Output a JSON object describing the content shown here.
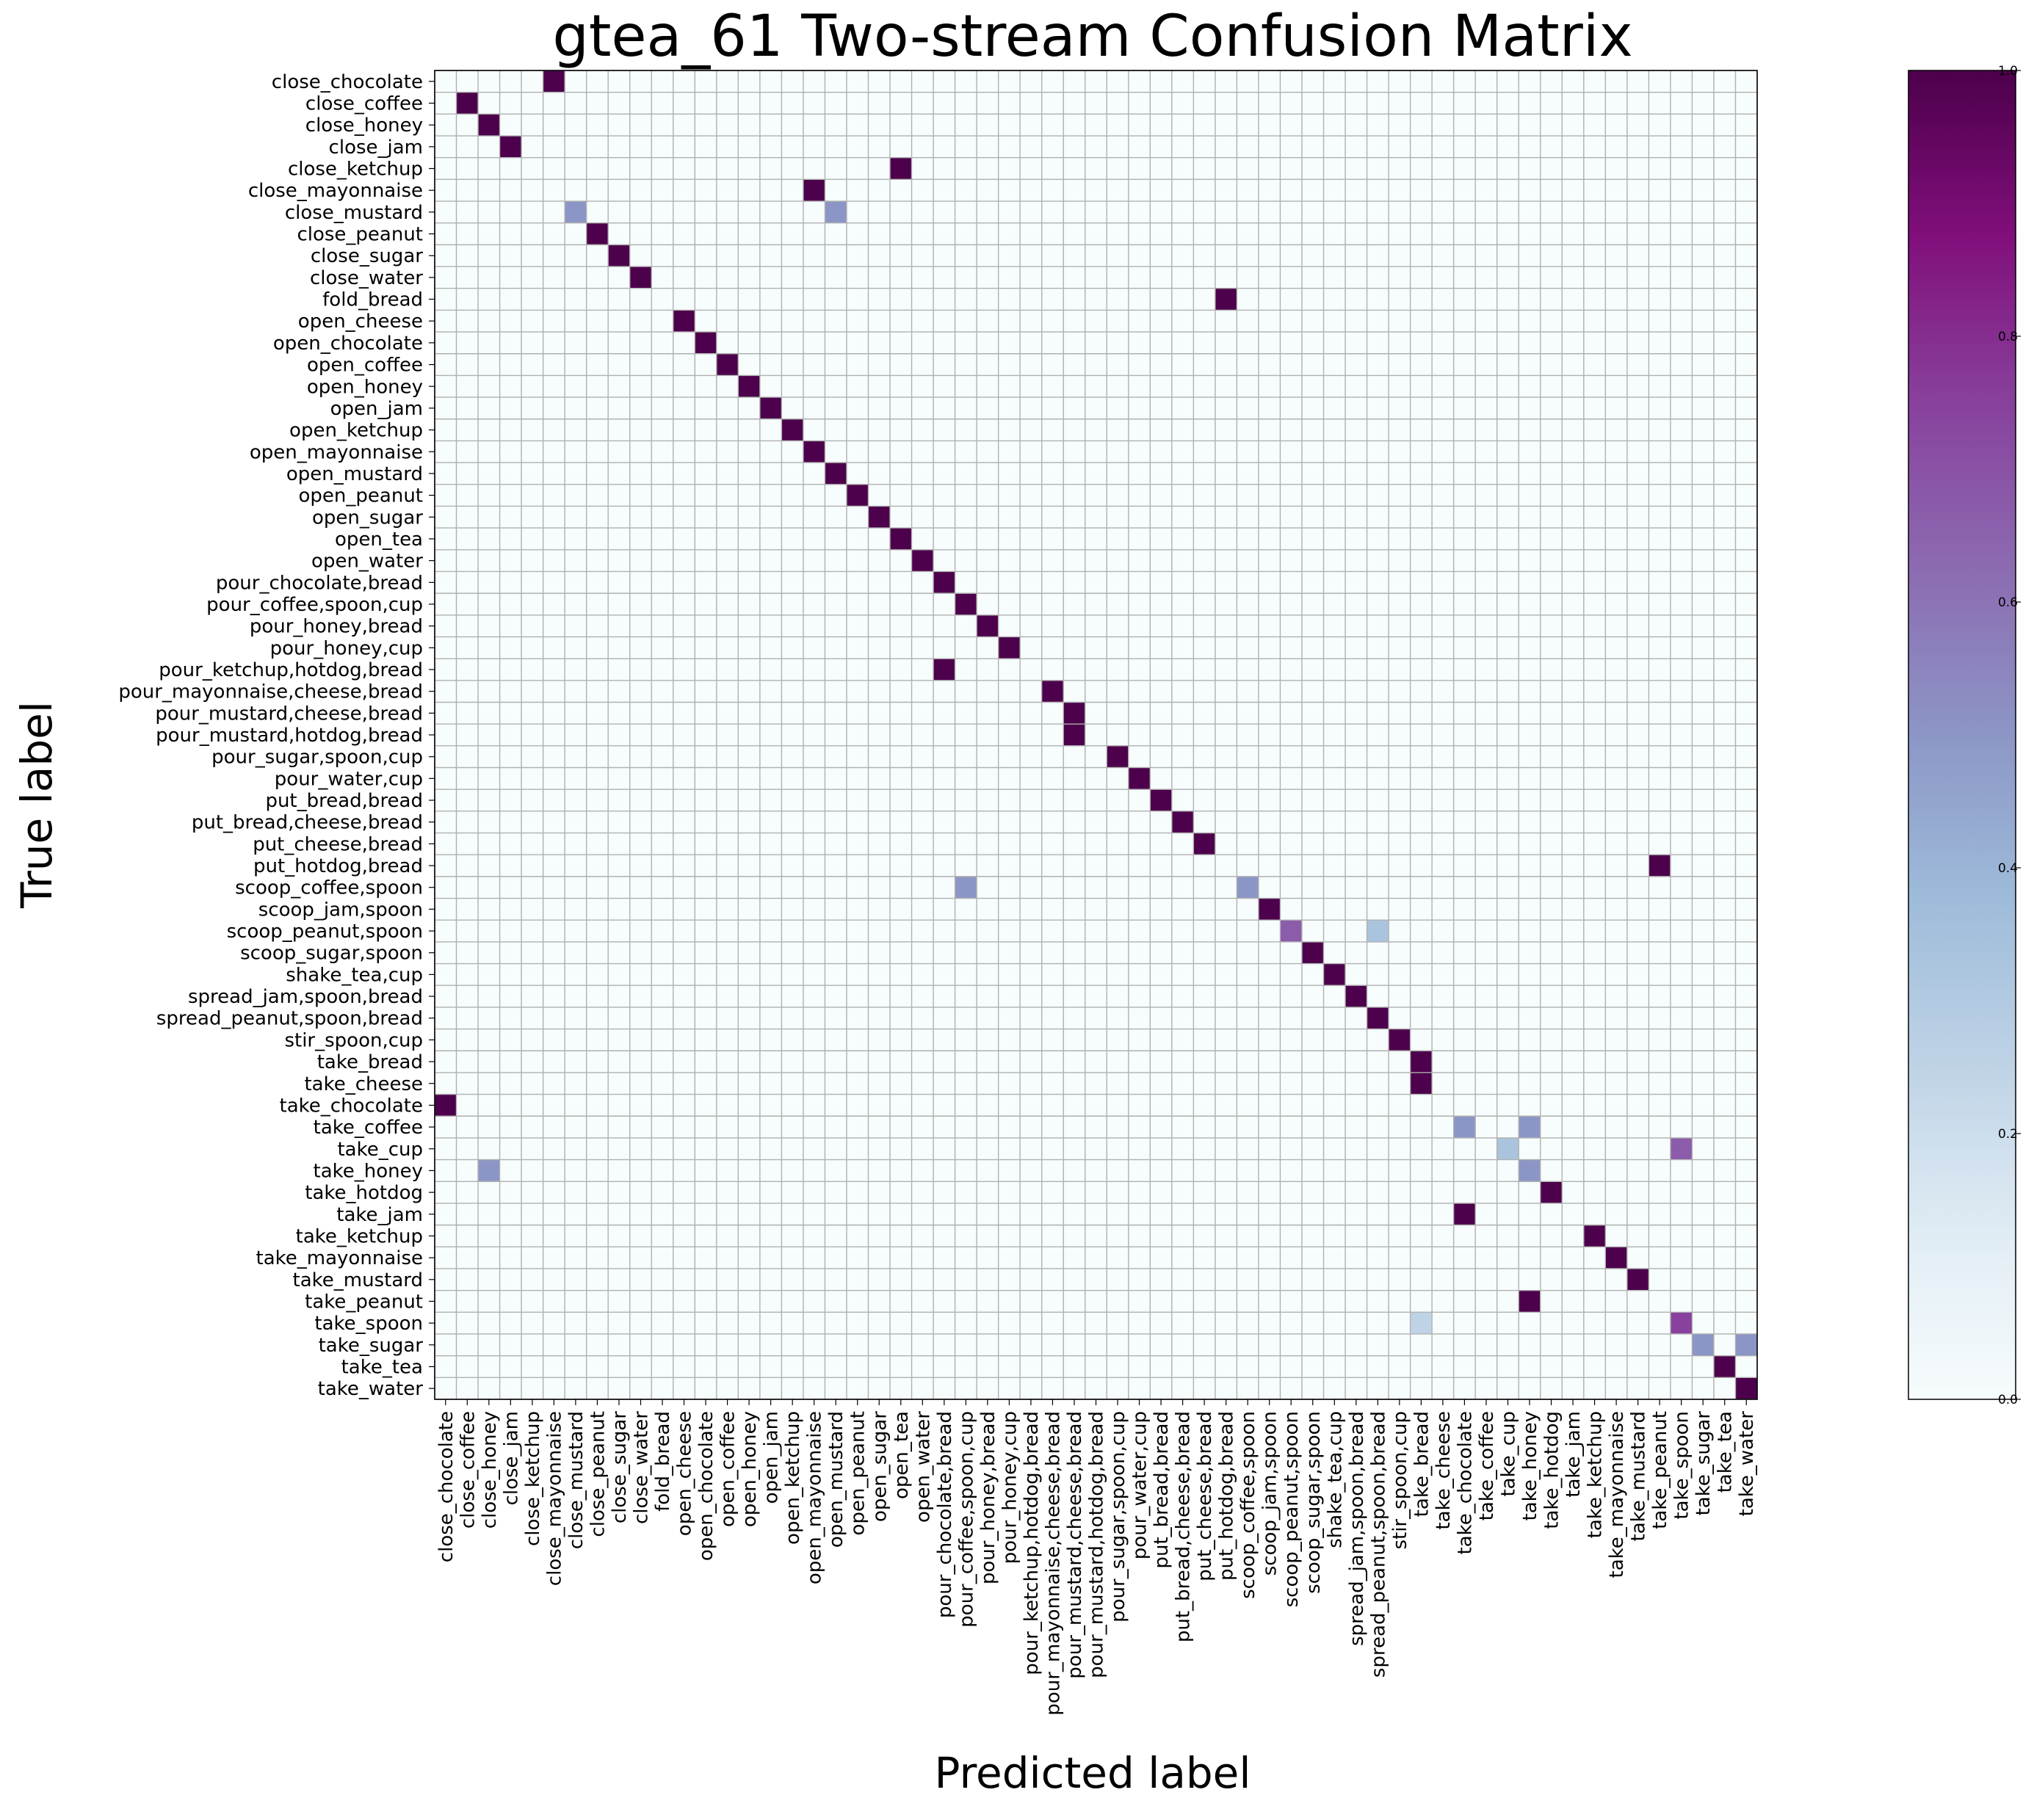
{
  "chart_data": {
    "type": "heatmap",
    "title": "gtea_61 Two-stream Confusion Matrix",
    "xlabel": "Predicted label",
    "ylabel": "True label",
    "labels": [
      "close_chocolate",
      "close_coffee",
      "close_honey",
      "close_jam",
      "close_ketchup",
      "close_mayonnaise",
      "close_mustard",
      "close_peanut",
      "close_sugar",
      "close_water",
      "fold_bread",
      "open_cheese",
      "open_chocolate",
      "open_coffee",
      "open_honey",
      "open_jam",
      "open_ketchup",
      "open_mayonnaise",
      "open_mustard",
      "open_peanut",
      "open_sugar",
      "open_tea",
      "open_water",
      "pour_chocolate,bread",
      "pour_coffee,spoon,cup",
      "pour_honey,bread",
      "pour_honey,cup",
      "pour_ketchup,hotdog,bread",
      "pour_mayonnaise,cheese,bread",
      "pour_mustard,cheese,bread",
      "pour_mustard,hotdog,bread",
      "pour_sugar,spoon,cup",
      "pour_water,cup",
      "put_bread,bread",
      "put_bread,cheese,bread",
      "put_cheese,bread",
      "put_hotdog,bread",
      "scoop_coffee,spoon",
      "scoop_jam,spoon",
      "scoop_peanut,spoon",
      "scoop_sugar,spoon",
      "shake_tea,cup",
      "spread_jam,spoon,bread",
      "spread_peanut,spoon,bread",
      "stir_spoon,cup",
      "take_bread",
      "take_cheese",
      "take_chocolate",
      "take_coffee",
      "take_cup",
      "take_honey",
      "take_hotdog",
      "take_jam",
      "take_ketchup",
      "take_mayonnaise",
      "take_mustard",
      "take_peanut",
      "take_spoon",
      "take_sugar",
      "take_tea",
      "take_water"
    ],
    "cells": [
      {
        "row": 0,
        "col": 5,
        "value": 1.0
      },
      {
        "row": 1,
        "col": 1,
        "value": 1.0
      },
      {
        "row": 2,
        "col": 2,
        "value": 1.0
      },
      {
        "row": 3,
        "col": 3,
        "value": 1.0
      },
      {
        "row": 4,
        "col": 21,
        "value": 1.0
      },
      {
        "row": 5,
        "col": 17,
        "value": 1.0
      },
      {
        "row": 6,
        "col": 6,
        "value": 0.5
      },
      {
        "row": 6,
        "col": 18,
        "value": 0.5
      },
      {
        "row": 7,
        "col": 7,
        "value": 1.0
      },
      {
        "row": 8,
        "col": 8,
        "value": 1.0
      },
      {
        "row": 9,
        "col": 9,
        "value": 1.0
      },
      {
        "row": 10,
        "col": 36,
        "value": 1.0
      },
      {
        "row": 11,
        "col": 11,
        "value": 1.0
      },
      {
        "row": 12,
        "col": 12,
        "value": 1.0
      },
      {
        "row": 13,
        "col": 13,
        "value": 1.0
      },
      {
        "row": 14,
        "col": 14,
        "value": 1.0
      },
      {
        "row": 15,
        "col": 15,
        "value": 1.0
      },
      {
        "row": 16,
        "col": 16,
        "value": 1.0
      },
      {
        "row": 17,
        "col": 17,
        "value": 1.0
      },
      {
        "row": 18,
        "col": 18,
        "value": 1.0
      },
      {
        "row": 19,
        "col": 19,
        "value": 1.0
      },
      {
        "row": 20,
        "col": 20,
        "value": 1.0
      },
      {
        "row": 21,
        "col": 21,
        "value": 1.0
      },
      {
        "row": 22,
        "col": 22,
        "value": 1.0
      },
      {
        "row": 23,
        "col": 23,
        "value": 1.0
      },
      {
        "row": 24,
        "col": 24,
        "value": 1.0
      },
      {
        "row": 25,
        "col": 25,
        "value": 1.0
      },
      {
        "row": 26,
        "col": 26,
        "value": 1.0
      },
      {
        "row": 27,
        "col": 23,
        "value": 1.0
      },
      {
        "row": 28,
        "col": 28,
        "value": 1.0
      },
      {
        "row": 29,
        "col": 29,
        "value": 1.0
      },
      {
        "row": 30,
        "col": 29,
        "value": 1.0
      },
      {
        "row": 31,
        "col": 31,
        "value": 1.0
      },
      {
        "row": 32,
        "col": 32,
        "value": 1.0
      },
      {
        "row": 33,
        "col": 33,
        "value": 1.0
      },
      {
        "row": 34,
        "col": 34,
        "value": 1.0
      },
      {
        "row": 35,
        "col": 35,
        "value": 1.0
      },
      {
        "row": 36,
        "col": 56,
        "value": 1.0
      },
      {
        "row": 37,
        "col": 24,
        "value": 0.5
      },
      {
        "row": 37,
        "col": 37,
        "value": 0.5
      },
      {
        "row": 38,
        "col": 38,
        "value": 1.0
      },
      {
        "row": 39,
        "col": 39,
        "value": 0.67
      },
      {
        "row": 39,
        "col": 43,
        "value": 0.33
      },
      {
        "row": 40,
        "col": 40,
        "value": 1.0
      },
      {
        "row": 41,
        "col": 41,
        "value": 1.0
      },
      {
        "row": 42,
        "col": 42,
        "value": 1.0
      },
      {
        "row": 43,
        "col": 43,
        "value": 1.0
      },
      {
        "row": 44,
        "col": 44,
        "value": 1.0
      },
      {
        "row": 45,
        "col": 45,
        "value": 1.0
      },
      {
        "row": 46,
        "col": 45,
        "value": 1.0
      },
      {
        "row": 47,
        "col": 0,
        "value": 1.0
      },
      {
        "row": 48,
        "col": 47,
        "value": 0.5
      },
      {
        "row": 48,
        "col": 50,
        "value": 0.5
      },
      {
        "row": 49,
        "col": 49,
        "value": 0.33
      },
      {
        "row": 49,
        "col": 57,
        "value": 0.67
      },
      {
        "row": 50,
        "col": 2,
        "value": 0.5
      },
      {
        "row": 50,
        "col": 50,
        "value": 0.5
      },
      {
        "row": 51,
        "col": 51,
        "value": 1.0
      },
      {
        "row": 52,
        "col": 47,
        "value": 1.0
      },
      {
        "row": 53,
        "col": 53,
        "value": 1.0
      },
      {
        "row": 54,
        "col": 54,
        "value": 1.0
      },
      {
        "row": 55,
        "col": 55,
        "value": 1.0
      },
      {
        "row": 56,
        "col": 50,
        "value": 1.0
      },
      {
        "row": 57,
        "col": 45,
        "value": 0.25
      },
      {
        "row": 57,
        "col": 57,
        "value": 0.75
      },
      {
        "row": 58,
        "col": 58,
        "value": 0.5
      },
      {
        "row": 58,
        "col": 60,
        "value": 0.5
      },
      {
        "row": 59,
        "col": 59,
        "value": 1.0
      },
      {
        "row": 60,
        "col": 60,
        "value": 1.0
      }
    ],
    "colorbar": {
      "min": 0.0,
      "max": 1.0,
      "ticks": [
        "0.0",
        "0.2",
        "0.4",
        "0.6",
        "0.8",
        "1.0"
      ],
      "colormap": "BuPu",
      "stops": [
        "#f7fcfd",
        "#e0ecf4",
        "#bfd3e6",
        "#9ebcda",
        "#8c96c6",
        "#8c6bb1",
        "#88419d",
        "#810f7c",
        "#4d004b"
      ]
    },
    "grid": true,
    "grid_color": "#b0b0b0"
  }
}
